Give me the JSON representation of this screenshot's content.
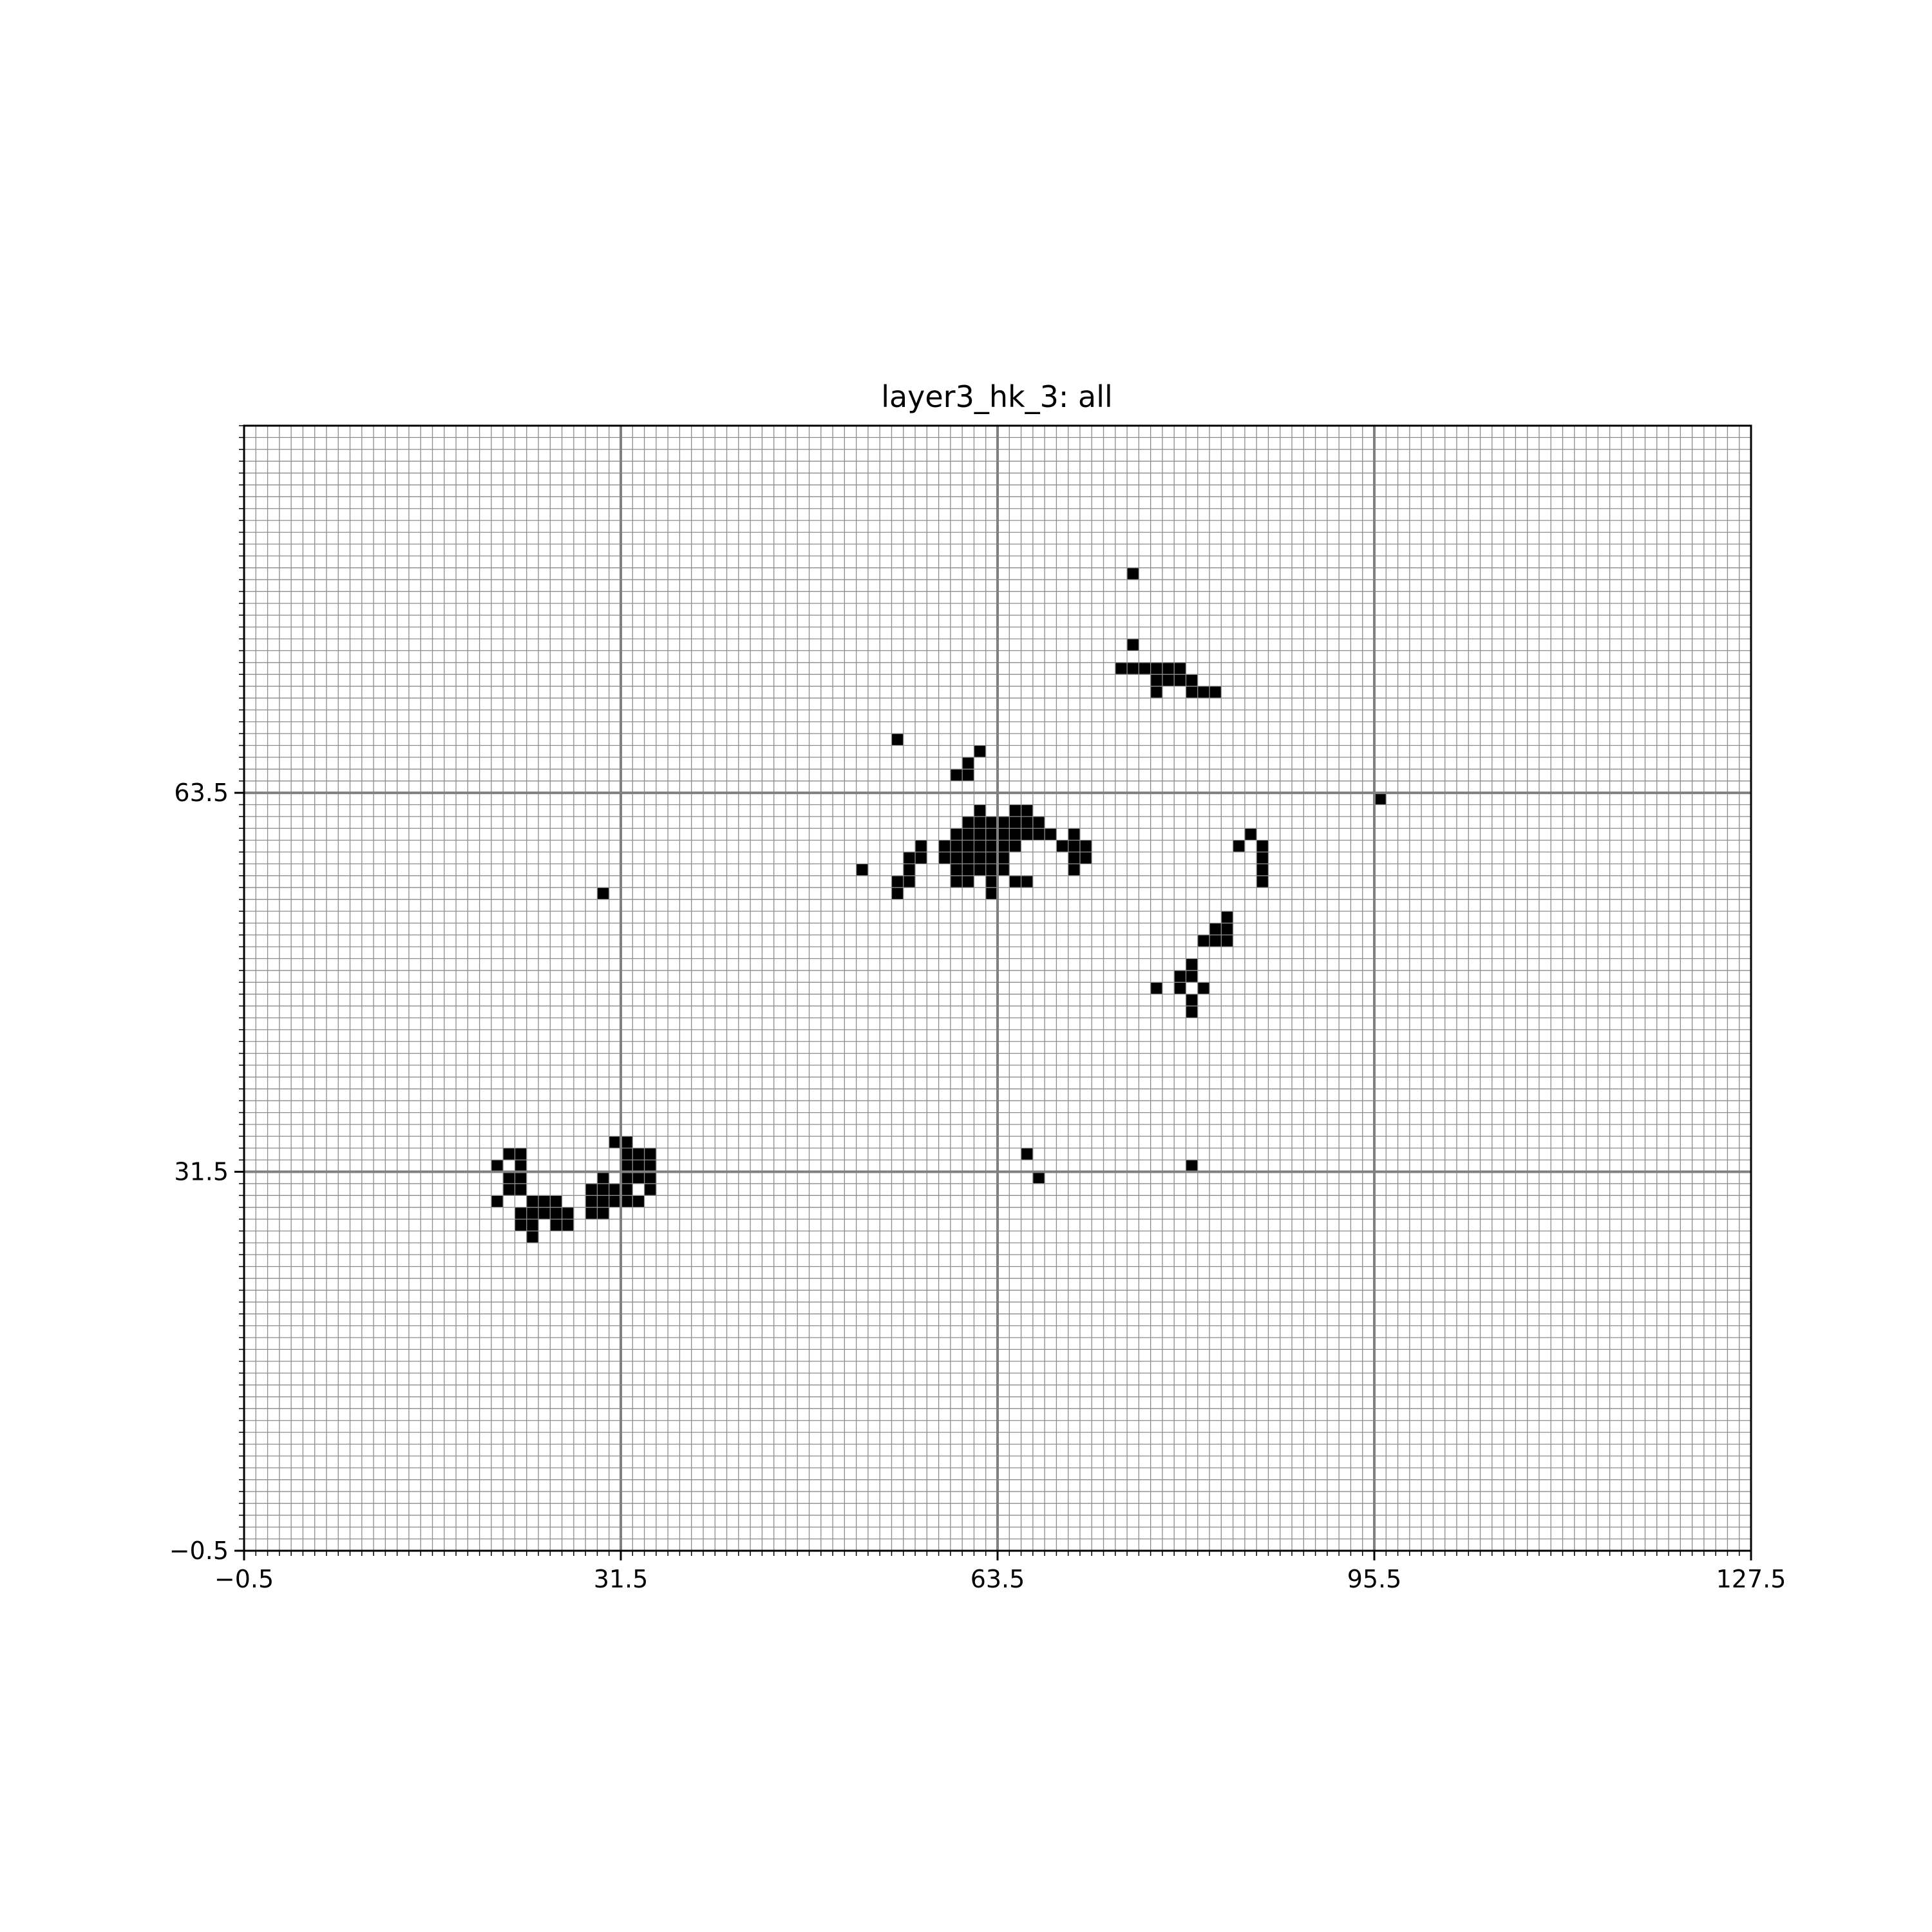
{
  "chart_data": {
    "type": "heatmap",
    "title": "layer3_hk_3: all",
    "xlabel": "",
    "ylabel": "",
    "xlim": [
      -0.5,
      127.5
    ],
    "ylim": [
      -0.5,
      94.5
    ],
    "x_ticks": [
      -0.5,
      31.5,
      63.5,
      95.5,
      127.5
    ],
    "y_ticks": [
      -0.5,
      31.5,
      63.5
    ],
    "x_tick_labels": [
      "−0.5",
      "31.5",
      "63.5",
      "95.5",
      "127.5"
    ],
    "y_tick_labels": [
      "−0.5",
      "31.5",
      "63.5"
    ],
    "minor_grid_step": 1,
    "major_grid_step": 32,
    "grid": true,
    "colors": {
      "filled": "#000000",
      "empty": "#ffffff",
      "minor_grid": "#8c8c8c",
      "major_grid": "#808080"
    },
    "filled_cells": [
      [
        75,
        82
      ],
      [
        75,
        76
      ],
      [
        74,
        74
      ],
      [
        75,
        74
      ],
      [
        76,
        74
      ],
      [
        77,
        74
      ],
      [
        78,
        74
      ],
      [
        79,
        74
      ],
      [
        77,
        73
      ],
      [
        78,
        73
      ],
      [
        79,
        73
      ],
      [
        80,
        73
      ],
      [
        77,
        72
      ],
      [
        80,
        72
      ],
      [
        81,
        72
      ],
      [
        82,
        72
      ],
      [
        55,
        68
      ],
      [
        62,
        67
      ],
      [
        61,
        66
      ],
      [
        60,
        65
      ],
      [
        61,
        65
      ],
      [
        96,
        63
      ],
      [
        62,
        62
      ],
      [
        65,
        62
      ],
      [
        66,
        62
      ],
      [
        61,
        61
      ],
      [
        62,
        61
      ],
      [
        63,
        61
      ],
      [
        64,
        61
      ],
      [
        65,
        61
      ],
      [
        66,
        61
      ],
      [
        67,
        61
      ],
      [
        60,
        60
      ],
      [
        61,
        60
      ],
      [
        62,
        60
      ],
      [
        63,
        60
      ],
      [
        64,
        60
      ],
      [
        65,
        60
      ],
      [
        66,
        60
      ],
      [
        67,
        60
      ],
      [
        68,
        60
      ],
      [
        70,
        60
      ],
      [
        85,
        60
      ],
      [
        57,
        59
      ],
      [
        59,
        59
      ],
      [
        60,
        59
      ],
      [
        61,
        59
      ],
      [
        62,
        59
      ],
      [
        63,
        59
      ],
      [
        64,
        59
      ],
      [
        65,
        59
      ],
      [
        69,
        59
      ],
      [
        70,
        59
      ],
      [
        71,
        59
      ],
      [
        84,
        59
      ],
      [
        86,
        59
      ],
      [
        56,
        58
      ],
      [
        57,
        58
      ],
      [
        59,
        58
      ],
      [
        60,
        58
      ],
      [
        61,
        58
      ],
      [
        62,
        58
      ],
      [
        63,
        58
      ],
      [
        64,
        58
      ],
      [
        70,
        58
      ],
      [
        71,
        58
      ],
      [
        86,
        58
      ],
      [
        52,
        57
      ],
      [
        56,
        57
      ],
      [
        60,
        57
      ],
      [
        61,
        57
      ],
      [
        62,
        57
      ],
      [
        63,
        57
      ],
      [
        64,
        57
      ],
      [
        70,
        57
      ],
      [
        86,
        57
      ],
      [
        55,
        56
      ],
      [
        56,
        56
      ],
      [
        60,
        56
      ],
      [
        61,
        56
      ],
      [
        63,
        56
      ],
      [
        65,
        56
      ],
      [
        66,
        56
      ],
      [
        86,
        56
      ],
      [
        30,
        55
      ],
      [
        55,
        55
      ],
      [
        63,
        55
      ],
      [
        83,
        53
      ],
      [
        82,
        52
      ],
      [
        83,
        52
      ],
      [
        81,
        51
      ],
      [
        82,
        51
      ],
      [
        83,
        51
      ],
      [
        80,
        49
      ],
      [
        79,
        48
      ],
      [
        80,
        48
      ],
      [
        77,
        47
      ],
      [
        79,
        47
      ],
      [
        81,
        47
      ],
      [
        80,
        46
      ],
      [
        80,
        45
      ],
      [
        31,
        34
      ],
      [
        32,
        34
      ],
      [
        22,
        33
      ],
      [
        23,
        33
      ],
      [
        32,
        33
      ],
      [
        33,
        33
      ],
      [
        34,
        33
      ],
      [
        66,
        33
      ],
      [
        21,
        32
      ],
      [
        23,
        32
      ],
      [
        32,
        32
      ],
      [
        33,
        32
      ],
      [
        34,
        32
      ],
      [
        80,
        32
      ],
      [
        22,
        31
      ],
      [
        23,
        31
      ],
      [
        30,
        31
      ],
      [
        32,
        31
      ],
      [
        33,
        31
      ],
      [
        34,
        31
      ],
      [
        67,
        31
      ],
      [
        22,
        30
      ],
      [
        23,
        30
      ],
      [
        29,
        30
      ],
      [
        30,
        30
      ],
      [
        31,
        30
      ],
      [
        32,
        30
      ],
      [
        34,
        30
      ],
      [
        21,
        29
      ],
      [
        24,
        29
      ],
      [
        25,
        29
      ],
      [
        26,
        29
      ],
      [
        29,
        29
      ],
      [
        30,
        29
      ],
      [
        31,
        29
      ],
      [
        32,
        29
      ],
      [
        33,
        29
      ],
      [
        23,
        28
      ],
      [
        24,
        28
      ],
      [
        25,
        28
      ],
      [
        26,
        28
      ],
      [
        27,
        28
      ],
      [
        29,
        28
      ],
      [
        30,
        28
      ],
      [
        23,
        27
      ],
      [
        24,
        27
      ],
      [
        26,
        27
      ],
      [
        27,
        27
      ],
      [
        24,
        26
      ]
    ]
  }
}
